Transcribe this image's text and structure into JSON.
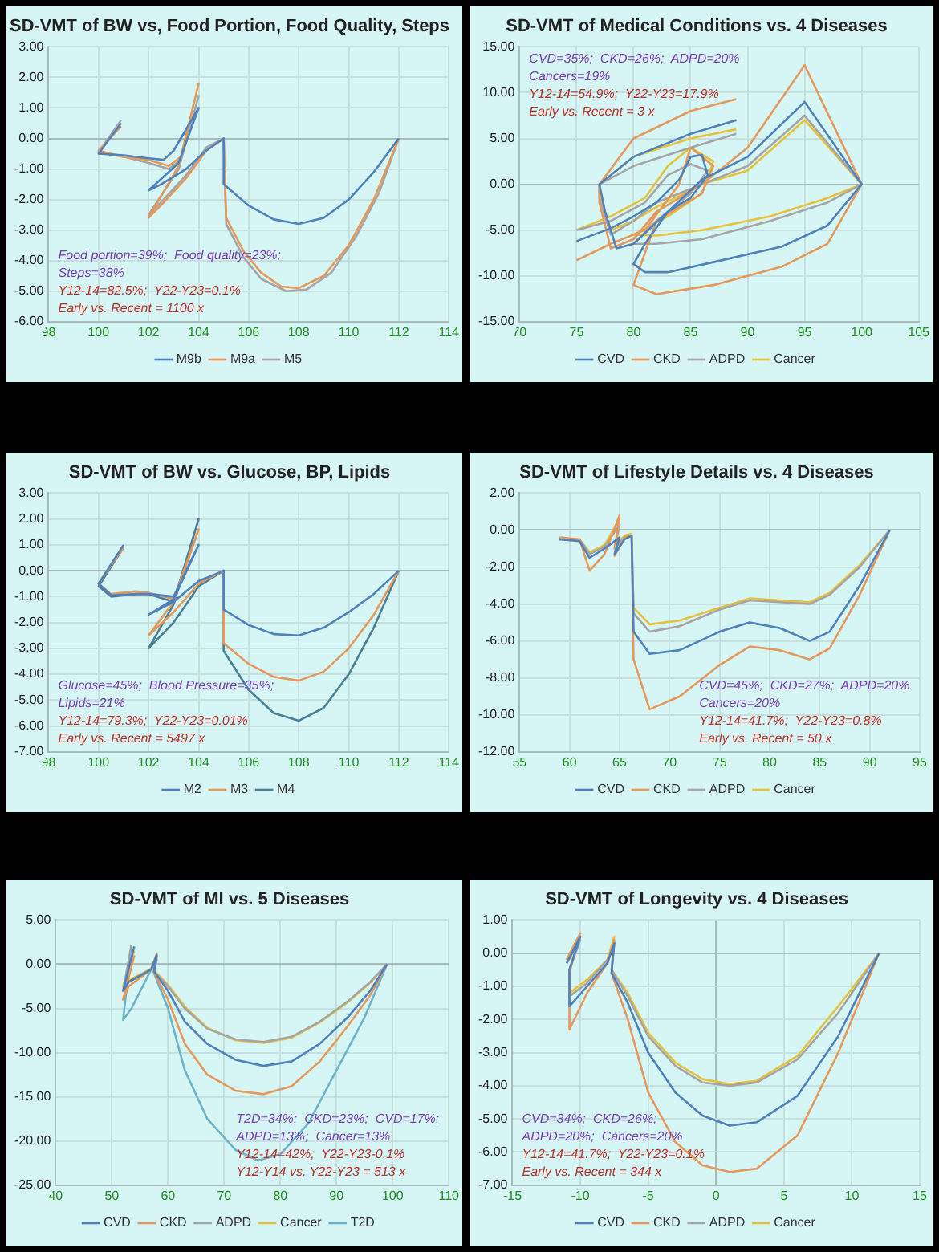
{
  "chart_data": [
    {
      "type": "line",
      "title": "SD-VMT of BW vs, Food Portion, Food Quality, Steps",
      "xlim": [
        98,
        114
      ],
      "xticks": [
        98,
        100,
        102,
        104,
        106,
        108,
        110,
        112,
        114
      ],
      "ylim": [
        -6,
        3
      ],
      "yticks": [
        {
          "value": 3,
          "label": "3.00"
        },
        {
          "value": 2,
          "label": "2.00"
        },
        {
          "value": 1,
          "label": "1.00"
        },
        {
          "value": 0,
          "label": "0.00"
        },
        {
          "value": -1,
          "label": "-1.00"
        },
        {
          "value": -2,
          "label": "-2.00"
        },
        {
          "value": -3,
          "label": "-3.00"
        },
        {
          "value": -4,
          "label": "-4.00"
        },
        {
          "value": -5,
          "label": "-5.00"
        },
        {
          "value": -6,
          "label": "-6.00"
        }
      ],
      "grid": true,
      "legend": "bottom",
      "marker": "none",
      "annotations": [
        "Food portion=39%;  Food quality=23%;",
        "Steps=38%",
        "Y12-14=82.5%;  Y22-Y23=0.1%",
        "Early vs. Recent = 1100 x"
      ],
      "series": [
        {
          "name": "M9b",
          "color": "#4f81bd",
          "x": [
            100.9,
            100,
            101,
            102,
            102.6,
            103,
            104,
            103.2,
            102,
            102.5,
            103.5,
            104.3,
            105,
            105,
            106,
            107,
            108,
            109,
            110,
            111,
            112
          ],
          "values": [
            0.5,
            -0.5,
            -0.55,
            -0.65,
            -0.7,
            -0.4,
            1.0,
            -0.8,
            -1.7,
            -1.5,
            -1.0,
            -0.4,
            0,
            -1.5,
            -2.2,
            -2.65,
            -2.8,
            -2.6,
            -2.0,
            -1.1,
            0
          ]
        },
        {
          "name": "M9a",
          "color": "#e5985a",
          "x": [
            100.9,
            100,
            101,
            102,
            102.8,
            103.3,
            104,
            103.2,
            102,
            102.6,
            103.5,
            104.3,
            105,
            105.1,
            105.8,
            106.5,
            107.3,
            108,
            109,
            110,
            111,
            112
          ],
          "values": [
            0.4,
            -0.4,
            -0.6,
            -0.7,
            -0.9,
            -0.6,
            1.8,
            -0.9,
            -2.6,
            -2.1,
            -1.3,
            -0.4,
            0,
            -2.6,
            -3.7,
            -4.4,
            -4.85,
            -4.9,
            -4.5,
            -3.5,
            -2.0,
            0
          ]
        },
        {
          "name": "M5",
          "color": "#a5a5a5",
          "x": [
            100.9,
            100,
            101,
            102,
            102.8,
            103.3,
            104,
            103.2,
            102,
            102.6,
            103.5,
            104.3,
            105,
            105.1,
            105.8,
            106.5,
            107.5,
            108.3,
            109.3,
            110.3,
            111.2,
            112
          ],
          "values": [
            0.6,
            -0.45,
            -0.6,
            -0.8,
            -1.0,
            -0.7,
            1.4,
            -1.0,
            -2.5,
            -2.0,
            -1.2,
            -0.3,
            0,
            -2.8,
            -3.9,
            -4.6,
            -5.0,
            -4.95,
            -4.4,
            -3.2,
            -1.8,
            0
          ]
        }
      ]
    },
    {
      "type": "line",
      "title": "SD-VMT of Medical Conditions vs. 4 Diseases",
      "xlim": [
        70,
        105
      ],
      "xticks": [
        70,
        75,
        80,
        85,
        90,
        95,
        100,
        105
      ],
      "ylim": [
        -15,
        15
      ],
      "yticks": [
        {
          "value": 15,
          "label": "15.00"
        },
        {
          "value": 10,
          "label": "10.00"
        },
        {
          "value": 5,
          "label": "5.00"
        },
        {
          "value": 0,
          "label": "0.00"
        },
        {
          "value": -5,
          "label": "-5.00"
        },
        {
          "value": -10,
          "label": "-10.00"
        },
        {
          "value": -15,
          "label": "-15.00"
        }
      ],
      "grid": true,
      "legend": "bottom",
      "marker": "none",
      "annotations": [
        "CVD=35%;  CKD=26%;  ADPD=20%",
        "Cancers=19%",
        "Y12-14=54.9%;  Y22-Y23=17.9%",
        "Early vs. Recent = 3 x"
      ],
      "series": [
        {
          "name": "CVD",
          "color": "#4f81bd",
          "x": [
            75,
            78,
            80,
            82,
            84,
            85,
            86,
            86.5,
            85,
            83,
            81,
            80,
            81,
            83,
            87,
            93,
            97,
            100,
            95,
            90,
            86,
            83,
            80,
            78.5,
            77.5,
            77,
            80,
            85,
            89
          ],
          "values": [
            -6.2,
            -4.8,
            -3.5,
            -2,
            0.5,
            3,
            3.2,
            1,
            -1.5,
            -3,
            -6.5,
            -8.7,
            -9.6,
            -9.6,
            -8.5,
            -6.8,
            -4.5,
            0,
            9,
            3,
            0.5,
            -3,
            -6.5,
            -7,
            -3,
            0,
            3,
            5.5,
            7
          ]
        },
        {
          "name": "CKD",
          "color": "#e5985a",
          "x": [
            75,
            78,
            81,
            84,
            85,
            87,
            86,
            82,
            80,
            82,
            87,
            93,
            97,
            100,
            95,
            90,
            86,
            82,
            80,
            78,
            77,
            77,
            80,
            85,
            89
          ],
          "values": [
            -8.3,
            -6.5,
            -5,
            0,
            4,
            2,
            -1,
            -4,
            -11,
            -12,
            -11,
            -9,
            -6.5,
            0,
            13,
            4,
            0,
            -3,
            -6,
            -7,
            -2,
            0,
            5,
            8,
            9.3
          ]
        },
        {
          "name": "ADPD",
          "color": "#a5a5a5",
          "x": [
            75,
            78,
            81,
            83,
            85,
            86.5,
            85,
            82,
            80,
            82,
            86,
            92,
            97,
            100,
            95,
            90,
            86,
            82,
            80,
            78,
            77,
            77,
            80,
            85,
            89
          ],
          "values": [
            -5,
            -4,
            -2,
            1,
            2.2,
            1.5,
            -1,
            -4,
            -6.5,
            -6.5,
            -6,
            -4,
            -2,
            0,
            7.5,
            2,
            0,
            -2,
            -4,
            -5.5,
            -1.5,
            0,
            2,
            4,
            5.5
          ]
        },
        {
          "name": "Cancer",
          "color": "#e6c23a",
          "x": [
            75,
            78,
            81,
            83,
            85,
            87,
            86,
            83,
            80,
            82,
            86,
            92,
            97,
            100,
            95,
            90,
            86,
            82,
            80,
            78,
            77,
            77,
            80,
            85,
            89
          ],
          "values": [
            -5,
            -3.5,
            -1.5,
            2,
            4,
            2.5,
            -1,
            -3.5,
            -5.5,
            -5.6,
            -5,
            -3.5,
            -1.5,
            0,
            7,
            1.5,
            0,
            -2.5,
            -4,
            -5,
            -1,
            0,
            3,
            5,
            6
          ]
        }
      ]
    },
    {
      "type": "line",
      "title": "SD-VMT of BW vs. Glucose, BP, Lipids",
      "xlim": [
        98,
        114
      ],
      "xticks": [
        98,
        100,
        102,
        104,
        106,
        108,
        110,
        112,
        114
      ],
      "ylim": [
        -7,
        3
      ],
      "yticks": [
        {
          "value": 3,
          "label": "3.00"
        },
        {
          "value": 2,
          "label": "2.00"
        },
        {
          "value": 1,
          "label": "1.00"
        },
        {
          "value": 0,
          "label": "0.00"
        },
        {
          "value": -1,
          "label": "-1.00"
        },
        {
          "value": -2,
          "label": "-2.00"
        },
        {
          "value": -3,
          "label": "-3.00"
        },
        {
          "value": -4,
          "label": "-4.00"
        },
        {
          "value": -5,
          "label": "-5.00"
        },
        {
          "value": -6,
          "label": "-6.00"
        },
        {
          "value": -7,
          "label": "-7.00"
        }
      ],
      "grid": true,
      "legend": "bottom",
      "marker": "none",
      "annotations": [
        "Glucose=45%;  Blood Pressure=35%;",
        "Lipids=21%",
        "Y12-14=79.3%;  Y22-Y23=0.01%",
        "Early vs. Recent = 5497 x"
      ],
      "series": [
        {
          "name": "M2",
          "color": "#4f81bd",
          "x": [
            101,
            100,
            100.5,
            101.5,
            102,
            103,
            104,
            103,
            102,
            103,
            104,
            105,
            105,
            106,
            107,
            108,
            109,
            110,
            111,
            112
          ],
          "values": [
            1.0,
            -0.5,
            -0.95,
            -0.9,
            -0.9,
            -1.0,
            1.0,
            -1.1,
            -1.7,
            -1.2,
            -0.4,
            0,
            -1.5,
            -2.1,
            -2.45,
            -2.5,
            -2.2,
            -1.6,
            -0.9,
            0
          ]
        },
        {
          "name": "M3",
          "color": "#e5985a",
          "x": [
            101,
            100,
            100.5,
            101.5,
            102,
            103,
            104,
            103,
            102,
            103,
            104,
            105,
            105,
            106,
            107,
            108,
            109,
            110,
            111,
            112
          ],
          "values": [
            0.9,
            -0.5,
            -0.9,
            -0.8,
            -0.85,
            -1.1,
            1.6,
            -1.2,
            -2.5,
            -1.6,
            -0.5,
            0,
            -2.8,
            -3.6,
            -4.1,
            -4.25,
            -3.9,
            -3.0,
            -1.7,
            0
          ]
        },
        {
          "name": "M4",
          "color": "#4a7f96",
          "x": [
            101,
            100,
            100.5,
            101.5,
            102,
            103,
            104,
            103,
            102,
            103,
            104,
            105,
            105,
            106,
            107,
            108,
            109,
            110,
            111,
            112
          ],
          "values": [
            0.9,
            -0.6,
            -1.0,
            -0.9,
            -0.9,
            -1.2,
            2.0,
            -1.3,
            -3.0,
            -2.0,
            -0.6,
            0,
            -3.1,
            -4.6,
            -5.5,
            -5.8,
            -5.3,
            -4.0,
            -2.2,
            0
          ]
        }
      ]
    },
    {
      "type": "line",
      "title": "SD-VMT of Lifestyle Details vs. 4 Diseases",
      "xlim": [
        55,
        95
      ],
      "xticks": [
        55,
        60,
        65,
        70,
        75,
        80,
        85,
        90,
        95
      ],
      "ylim": [
        -12,
        2
      ],
      "yticks": [
        {
          "value": 2,
          "label": "2.00"
        },
        {
          "value": 0,
          "label": "0.00"
        },
        {
          "value": -2,
          "label": "-2.00"
        },
        {
          "value": -4,
          "label": "-4.00"
        },
        {
          "value": -6,
          "label": "-6.00"
        },
        {
          "value": -8,
          "label": "-8.00"
        },
        {
          "value": -10,
          "label": "-10.00"
        },
        {
          "value": -12,
          "label": "-12.00"
        }
      ],
      "grid": true,
      "legend": "bottom",
      "marker": "none",
      "annotations": [
        "CVD=45%;  CKD=27%;  ADPD=20%",
        "Cancers=20%",
        "Y12-14=41.7%;  Y22-Y23=0.8%",
        "Early vs. Recent = 50 x"
      ],
      "series": [
        {
          "name": "CVD",
          "color": "#4f81bd",
          "x": [
            59,
            61,
            62,
            63.5,
            65,
            64.5,
            65.5,
            66.2,
            66.4,
            68,
            71,
            75,
            78,
            81,
            84,
            86,
            89,
            92
          ],
          "values": [
            -0.5,
            -0.6,
            -1.5,
            -1.0,
            -0.4,
            -1.3,
            -0.5,
            -0.3,
            -5.5,
            -6.7,
            -6.5,
            -5.5,
            -5.0,
            -5.3,
            -6.0,
            -5.5,
            -3.0,
            0
          ]
        },
        {
          "name": "CKD",
          "color": "#e5985a",
          "x": [
            59,
            61,
            62,
            63.5,
            65,
            64.5,
            65.5,
            66.2,
            66.4,
            68,
            71,
            75,
            78,
            81,
            84,
            86,
            89,
            92
          ],
          "values": [
            -0.4,
            -0.5,
            -2.2,
            -1.3,
            0.8,
            -1.4,
            -0.4,
            -0.3,
            -7.0,
            -9.7,
            -9.0,
            -7.3,
            -6.3,
            -6.5,
            -7.0,
            -6.4,
            -3.5,
            0
          ]
        },
        {
          "name": "ADPD",
          "color": "#a5a5a5",
          "x": [
            59,
            61,
            62,
            63.5,
            65,
            64.5,
            65.5,
            66.2,
            66.4,
            68,
            71,
            75,
            78,
            81,
            84,
            86,
            89,
            92
          ],
          "values": [
            -0.5,
            -0.5,
            -1.3,
            -0.9,
            0.3,
            -1.0,
            -0.4,
            -0.3,
            -4.5,
            -5.5,
            -5.2,
            -4.3,
            -3.8,
            -3.9,
            -4.0,
            -3.5,
            -2.0,
            0
          ]
        },
        {
          "name": "Cancer",
          "color": "#e6c23a",
          "x": [
            59,
            61,
            62,
            63.5,
            65,
            64.5,
            65.5,
            66.2,
            66.4,
            68,
            71,
            75,
            78,
            81,
            84,
            86,
            89,
            92
          ],
          "values": [
            -0.5,
            -0.5,
            -1.2,
            -0.8,
            0.6,
            -0.9,
            -0.3,
            -0.2,
            -4.2,
            -5.1,
            -4.9,
            -4.2,
            -3.7,
            -3.8,
            -3.9,
            -3.4,
            -1.9,
            0
          ]
        }
      ]
    },
    {
      "type": "line",
      "title": "SD-VMT of MI vs. 5 Diseases",
      "xlim": [
        40,
        110
      ],
      "xticks": [
        40,
        50,
        60,
        70,
        80,
        90,
        100,
        110
      ],
      "ylim": [
        -25,
        5
      ],
      "yticks": [
        {
          "value": 5,
          "label": "5.00"
        },
        {
          "value": 0,
          "label": "0.00"
        },
        {
          "value": -5,
          "label": "-5.00"
        },
        {
          "value": -10,
          "label": "-10.00"
        },
        {
          "value": -15,
          "label": "-15.00"
        },
        {
          "value": -20,
          "label": "-20.00"
        },
        {
          "value": -25,
          "label": "-25.00"
        }
      ],
      "grid": true,
      "legend": "bottom",
      "marker": "none",
      "annotations": [
        "T2D=34%;  CKD=23%;  CVD=17%;",
        "ADPD=13%;  Cancer=13%",
        "Y12-14=42%;  Y22-Y23-0.1%",
        "Y12-Y14 vs. Y22-Y23 = 513 x"
      ],
      "series": [
        {
          "name": "CVD",
          "color": "#4f81bd",
          "x": [
            54,
            52,
            53,
            57,
            58,
            57.5,
            60,
            63,
            67,
            72,
            77,
            82,
            87,
            92,
            96,
            99
          ],
          "values": [
            2.0,
            -3,
            -2,
            -0.6,
            1.0,
            -0.8,
            -3,
            -6.5,
            -9,
            -10.8,
            -11.5,
            -11,
            -9,
            -6,
            -3,
            0
          ]
        },
        {
          "name": "CKD",
          "color": "#e5985a",
          "x": [
            54,
            52,
            53,
            57,
            58,
            57.5,
            60,
            63,
            67,
            72,
            77,
            82,
            87,
            92,
            96,
            99
          ],
          "values": [
            1.0,
            -4,
            -2.5,
            -0.6,
            1.2,
            -0.9,
            -4,
            -9,
            -12.5,
            -14.3,
            -14.7,
            -13.8,
            -11,
            -7,
            -3.5,
            0
          ]
        },
        {
          "name": "ADPD",
          "color": "#a5a5a5",
          "x": [
            53.5,
            52,
            53,
            57,
            58,
            57.5,
            60,
            63,
            67,
            72,
            77,
            82,
            87,
            92,
            96,
            99
          ],
          "values": [
            2.2,
            -3,
            -2,
            -0.6,
            0.8,
            -0.8,
            -2.5,
            -5,
            -7.3,
            -8.5,
            -8.8,
            -8.2,
            -6.5,
            -4.2,
            -2,
            0
          ]
        },
        {
          "name": "Cancer",
          "color": "#e6c23a",
          "x": [
            54,
            52,
            53,
            57,
            58,
            57.5,
            60,
            63,
            67,
            72,
            77,
            82,
            87,
            92,
            96,
            99
          ],
          "values": [
            1.5,
            -2.5,
            -1.8,
            -0.5,
            1.0,
            -0.7,
            -2.3,
            -4.8,
            -7.2,
            -8.6,
            -8.9,
            -8.3,
            -6.6,
            -4.3,
            -2.1,
            0
          ]
        },
        {
          "name": "T2D",
          "color": "#6fb3c8",
          "x": [
            53.5,
            52,
            53.5,
            57,
            58,
            57.5,
            60,
            63,
            67,
            72,
            76,
            80,
            85,
            90,
            95,
            99
          ],
          "values": [
            2.2,
            -6.3,
            -5,
            -0.6,
            0.5,
            -1.0,
            -5,
            -12,
            -17.5,
            -21,
            -22.2,
            -21.5,
            -18,
            -12,
            -6,
            0
          ]
        }
      ]
    },
    {
      "type": "line",
      "title": "SD-VMT of Longevity vs. 4 Diseases",
      "xlim": [
        -15,
        15
      ],
      "xticks": [
        -15,
        -10,
        -5,
        0,
        5,
        10,
        15
      ],
      "ylim": [
        -7,
        1
      ],
      "yticks": [
        {
          "value": 1,
          "label": "1.00"
        },
        {
          "value": 0,
          "label": "0.00"
        },
        {
          "value": -1,
          "label": "-1.00"
        },
        {
          "value": -2,
          "label": "-2.00"
        },
        {
          "value": -3,
          "label": "-3.00"
        },
        {
          "value": -4,
          "label": "-4.00"
        },
        {
          "value": -5,
          "label": "-5.00"
        },
        {
          "value": -6,
          "label": "-6.00"
        },
        {
          "value": -7,
          "label": "-7.00"
        }
      ],
      "grid": true,
      "legend": "bottom",
      "marker": "none",
      "annotations": [
        "CVD=34%;  CKD=26%;",
        "ADPD=20%;  Cancers=20%",
        "Y12-14=41.7%;  Y22-Y23=0.1%",
        "Early vs. Recent = 344 x"
      ],
      "series": [
        {
          "name": "CVD",
          "color": "#4f81bd",
          "x": [
            -11,
            -10,
            -10.8,
            -10.8,
            -9.5,
            -8,
            -7.5,
            -7.7,
            -6.5,
            -5,
            -3,
            -1,
            1,
            3,
            6,
            9,
            12
          ],
          "values": [
            -0.3,
            0.5,
            -0.5,
            -1.6,
            -1.0,
            -0.3,
            0.3,
            -0.6,
            -1.5,
            -3.0,
            -4.2,
            -4.9,
            -5.2,
            -5.1,
            -4.3,
            -2.5,
            0
          ]
        },
        {
          "name": "CKD",
          "color": "#e5985a",
          "x": [
            -11,
            -10,
            -10.8,
            -10.8,
            -9.5,
            -8,
            -7.5,
            -7.7,
            -6.5,
            -5,
            -3,
            -1,
            1,
            3,
            6,
            9,
            12
          ],
          "values": [
            -0.2,
            0.6,
            -0.6,
            -2.3,
            -1.2,
            -0.3,
            0.4,
            -0.6,
            -2,
            -4.2,
            -5.7,
            -6.4,
            -6.6,
            -6.5,
            -5.5,
            -3,
            0
          ]
        },
        {
          "name": "ADPD",
          "color": "#a5a5a5",
          "x": [
            -11,
            -10,
            -10.8,
            -10.8,
            -9.5,
            -8,
            -7.5,
            -7.7,
            -6.5,
            -5,
            -3,
            -1,
            1,
            3,
            6,
            9,
            12
          ],
          "values": [
            -0.3,
            0.4,
            -0.5,
            -1.3,
            -0.9,
            -0.2,
            0.3,
            -0.5,
            -1.3,
            -2.5,
            -3.4,
            -3.9,
            -4.0,
            -3.9,
            -3.2,
            -1.8,
            0
          ]
        },
        {
          "name": "Cancer",
          "color": "#e6c23a",
          "x": [
            -11,
            -10,
            -10.8,
            -10.8,
            -9.5,
            -8,
            -7.5,
            -7.7,
            -6.5,
            -5,
            -3,
            -1,
            1,
            3,
            6,
            9,
            12
          ],
          "values": [
            -0.2,
            0.6,
            -0.5,
            -1.2,
            -0.8,
            -0.2,
            0.5,
            -0.5,
            -1.2,
            -2.4,
            -3.3,
            -3.8,
            -3.95,
            -3.85,
            -3.1,
            -1.6,
            0
          ]
        }
      ]
    }
  ]
}
